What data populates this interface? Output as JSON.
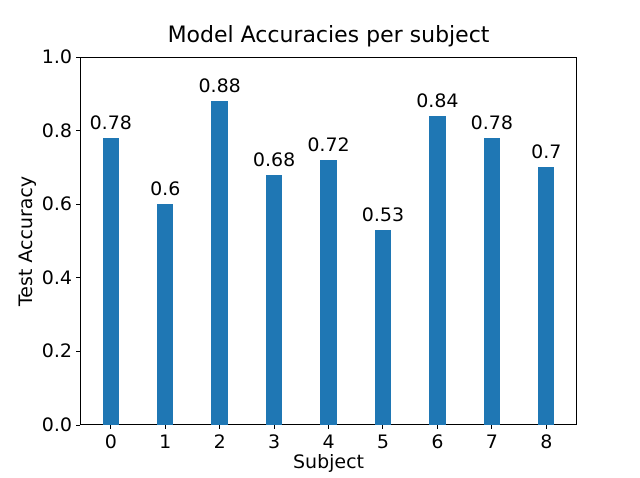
{
  "chart_data": {
    "type": "bar",
    "title": "Model Accuracies per subject",
    "xlabel": "Subject",
    "ylabel": "Test Accuracy",
    "categories": [
      "0",
      "1",
      "2",
      "3",
      "4",
      "5",
      "6",
      "7",
      "8"
    ],
    "values": [
      0.78,
      0.6,
      0.88,
      0.68,
      0.72,
      0.53,
      0.84,
      0.78,
      0.7
    ],
    "value_labels": [
      "0.78",
      "0.6",
      "0.88",
      "0.68",
      "0.72",
      "0.53",
      "0.84",
      "0.78",
      "0.7"
    ],
    "ylim": [
      0.0,
      1.0
    ],
    "xlim": [
      -0.565,
      8.565
    ],
    "ytick_labels": [
      "0.0",
      "0.2",
      "0.4",
      "0.6",
      "0.8",
      "1.0"
    ],
    "bar_width_data_units": 0.3,
    "bar_color": "#1f77b4",
    "axis_color": "#000000",
    "text_color": "#000000",
    "grid": false,
    "legend": null
  }
}
